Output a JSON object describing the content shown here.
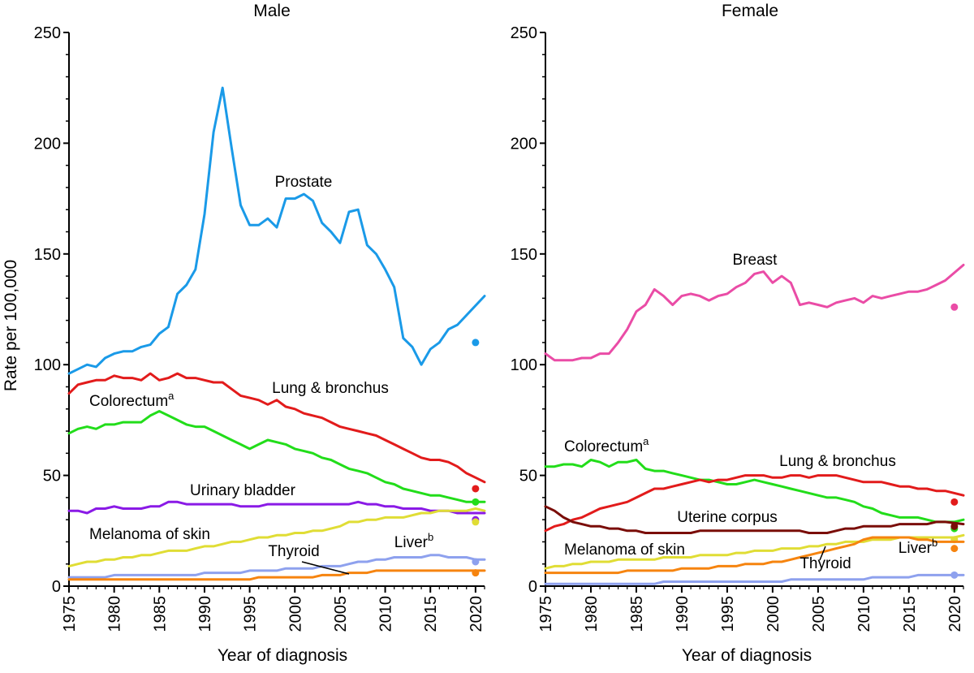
{
  "chart_data": [
    {
      "type": "line",
      "title": "Male",
      "xlabel": "Year of diagnosis",
      "ylabel": "Rate per 100,000",
      "xlim": [
        1975,
        2021
      ],
      "ylim": [
        0,
        250
      ],
      "xticks": [
        1975,
        1980,
        1985,
        1990,
        1995,
        2000,
        2005,
        2010,
        2015,
        2020
      ],
      "yticks": [
        0,
        50,
        100,
        150,
        200,
        250
      ],
      "x": [
        1975,
        1976,
        1977,
        1978,
        1979,
        1980,
        1981,
        1982,
        1983,
        1984,
        1985,
        1986,
        1987,
        1988,
        1989,
        1990,
        1991,
        1992,
        1993,
        1994,
        1995,
        1996,
        1997,
        1998,
        1999,
        2000,
        2001,
        2002,
        2003,
        2004,
        2005,
        2006,
        2007,
        2008,
        2009,
        2010,
        2011,
        2012,
        2013,
        2014,
        2015,
        2016,
        2017,
        2018,
        2019,
        2020,
        2021
      ],
      "series": [
        {
          "name": "Prostate",
          "label": "Prostate",
          "label_sup": "",
          "color": "#1a9ae8",
          "point_2020": 110,
          "values": [
            96,
            98,
            100,
            99,
            103,
            105,
            106,
            106,
            108,
            109,
            114,
            117,
            132,
            136,
            143,
            168,
            205,
            225,
            198,
            172,
            163,
            163,
            166,
            162,
            175,
            175,
            177,
            174,
            164,
            160,
            155,
            169,
            170,
            154,
            150,
            143,
            135,
            112,
            108,
            100,
            107,
            110,
            116,
            118,
            null,
            null,
            131
          ]
        },
        {
          "name": "Lung & bronchus",
          "label": "Lung & bronchus",
          "label_sup": "",
          "color": "#e21b1b",
          "point_2020": 44,
          "values": [
            87,
            91,
            92,
            93,
            93,
            95,
            94,
            94,
            93,
            96,
            93,
            94,
            96,
            94,
            94,
            93,
            92,
            92,
            89,
            86,
            85,
            84,
            82,
            84,
            81,
            80,
            78,
            77,
            76,
            74,
            72,
            71,
            70,
            69,
            68,
            66,
            64,
            62,
            60,
            58,
            57,
            57,
            56,
            54,
            51,
            49,
            47
          ]
        },
        {
          "name": "Colorectum",
          "label": "Colorectum",
          "label_sup": "a",
          "color": "#22dd1a",
          "point_2020": 38,
          "values": [
            69,
            71,
            72,
            71,
            73,
            73,
            74,
            74,
            74,
            77,
            79,
            77,
            75,
            73,
            72,
            72,
            70,
            68,
            66,
            64,
            62,
            64,
            66,
            65,
            64,
            62,
            61,
            60,
            58,
            57,
            55,
            53,
            52,
            51,
            49,
            47,
            46,
            44,
            43,
            42,
            41,
            41,
            40,
            39,
            38,
            38,
            38
          ]
        },
        {
          "name": "Urinary bladder",
          "label": "Urinary bladder",
          "label_sup": "",
          "color": "#8a1ae6",
          "point_2020": 30,
          "values": [
            34,
            34,
            33,
            35,
            35,
            36,
            35,
            35,
            35,
            36,
            36,
            38,
            38,
            37,
            37,
            37,
            37,
            37,
            37,
            36,
            36,
            36,
            37,
            37,
            37,
            37,
            37,
            37,
            37,
            37,
            37,
            37,
            38,
            37,
            37,
            36,
            36,
            35,
            35,
            35,
            34,
            34,
            34,
            33,
            33,
            33,
            33
          ]
        },
        {
          "name": "Melanoma of skin",
          "label": "Melanoma of skin",
          "label_sup": "",
          "color": "#e0dd35",
          "point_2020": 29,
          "values": [
            9,
            10,
            11,
            11,
            12,
            12,
            13,
            13,
            14,
            14,
            15,
            16,
            16,
            16,
            17,
            18,
            18,
            19,
            20,
            20,
            21,
            22,
            22,
            23,
            23,
            24,
            24,
            25,
            25,
            26,
            27,
            29,
            29,
            30,
            30,
            31,
            31,
            31,
            32,
            33,
            33,
            34,
            34,
            34,
            34,
            35,
            34
          ]
        },
        {
          "name": "Liver",
          "label": "Liver",
          "label_sup": "b",
          "color": "#8ea1ee",
          "point_2020": 11,
          "values": [
            4,
            4,
            4,
            4,
            4,
            5,
            5,
            5,
            5,
            5,
            5,
            5,
            5,
            5,
            5,
            6,
            6,
            6,
            6,
            6,
            7,
            7,
            7,
            7,
            8,
            8,
            8,
            8,
            9,
            9,
            9,
            10,
            11,
            11,
            12,
            12,
            13,
            13,
            13,
            13,
            14,
            14,
            13,
            13,
            13,
            12,
            12
          ]
        },
        {
          "name": "Thyroid",
          "label": "Thyroid",
          "label_sup": "",
          "color": "#f6840f",
          "point_2020": 6,
          "values": [
            3,
            3,
            3,
            3,
            3,
            3,
            3,
            3,
            3,
            3,
            3,
            3,
            3,
            3,
            3,
            3,
            3,
            3,
            3,
            3,
            3,
            4,
            4,
            4,
            4,
            4,
            4,
            4,
            5,
            5,
            5,
            6,
            6,
            6,
            7,
            7,
            7,
            7,
            7,
            7,
            7,
            7,
            7,
            7,
            7,
            7,
            7
          ]
        }
      ]
    },
    {
      "type": "line",
      "title": "Female",
      "xlabel": "Year of diagnosis",
      "ylabel": "",
      "xlim": [
        1975,
        2021
      ],
      "ylim": [
        0,
        250
      ],
      "xticks": [
        1975,
        1980,
        1985,
        1990,
        1995,
        2000,
        2005,
        2010,
        2015,
        2020
      ],
      "yticks": [
        0,
        50,
        100,
        150,
        200,
        250
      ],
      "x": [
        1975,
        1976,
        1977,
        1978,
        1979,
        1980,
        1981,
        1982,
        1983,
        1984,
        1985,
        1986,
        1987,
        1988,
        1989,
        1990,
        1991,
        1992,
        1993,
        1994,
        1995,
        1996,
        1997,
        1998,
        1999,
        2000,
        2001,
        2002,
        2003,
        2004,
        2005,
        2006,
        2007,
        2008,
        2009,
        2010,
        2011,
        2012,
        2013,
        2014,
        2015,
        2016,
        2017,
        2018,
        2019,
        2020,
        2021
      ],
      "series": [
        {
          "name": "Breast",
          "label": "Breast",
          "label_sup": "",
          "color": "#ea4ca6",
          "point_2020": 126,
          "values": [
            105,
            102,
            102,
            102,
            103,
            103,
            105,
            105,
            110,
            116,
            124,
            127,
            134,
            131,
            127,
            131,
            132,
            131,
            129,
            131,
            132,
            135,
            137,
            141,
            142,
            137,
            140,
            137,
            127,
            128,
            127,
            126,
            128,
            129,
            130,
            128,
            131,
            130,
            131,
            132,
            133,
            133,
            134,
            136,
            138,
            null,
            145
          ]
        },
        {
          "name": "Colorectum",
          "label": "Colorectum",
          "label_sup": "a",
          "color": "#22dd1a",
          "point_2020": 26,
          "values": [
            54,
            54,
            55,
            55,
            54,
            57,
            56,
            54,
            56,
            56,
            57,
            53,
            52,
            52,
            51,
            50,
            49,
            48,
            48,
            47,
            46,
            46,
            47,
            48,
            47,
            46,
            45,
            44,
            43,
            42,
            41,
            40,
            40,
            39,
            38,
            36,
            35,
            33,
            32,
            31,
            31,
            31,
            30,
            29,
            29,
            29,
            30
          ]
        },
        {
          "name": "Lung & bronchus",
          "label": "Lung & bronchus",
          "label_sup": "",
          "color": "#e21b1b",
          "point_2020": 38,
          "values": [
            25,
            27,
            28,
            30,
            31,
            33,
            35,
            36,
            37,
            38,
            40,
            42,
            44,
            44,
            45,
            46,
            47,
            48,
            47,
            48,
            48,
            49,
            50,
            50,
            50,
            49,
            49,
            50,
            50,
            49,
            50,
            50,
            50,
            49,
            48,
            47,
            47,
            47,
            46,
            45,
            45,
            44,
            44,
            43,
            43,
            42,
            41
          ]
        },
        {
          "name": "Uterine corpus",
          "label": "Uterine corpus",
          "label_sup": "",
          "color": "#7a0d08",
          "point_2020": 27,
          "values": [
            36,
            34,
            31,
            29,
            28,
            27,
            27,
            26,
            26,
            25,
            25,
            24,
            24,
            24,
            24,
            24,
            24,
            25,
            25,
            25,
            25,
            25,
            25,
            25,
            25,
            25,
            25,
            25,
            25,
            24,
            24,
            24,
            25,
            26,
            26,
            27,
            27,
            27,
            27,
            28,
            28,
            28,
            28,
            29,
            29,
            null,
            28
          ]
        },
        {
          "name": "Melanoma of skin",
          "label": "Melanoma of skin",
          "label_sup": "",
          "color": "#e0dd35",
          "point_2020": 21,
          "values": [
            8,
            9,
            9,
            10,
            10,
            11,
            11,
            11,
            12,
            12,
            12,
            12,
            12,
            13,
            13,
            13,
            13,
            14,
            14,
            14,
            14,
            15,
            15,
            16,
            16,
            16,
            17,
            17,
            17,
            18,
            18,
            19,
            19,
            20,
            20,
            20,
            21,
            21,
            21,
            22,
            22,
            22,
            22,
            22,
            22,
            22,
            23
          ]
        },
        {
          "name": "Thyroid",
          "label": "Thyroid",
          "label_sup": "",
          "color": "#f6840f",
          "point_2020": 17,
          "values": [
            6,
            6,
            6,
            6,
            6,
            6,
            6,
            6,
            6,
            7,
            7,
            7,
            7,
            7,
            7,
            8,
            8,
            8,
            8,
            9,
            9,
            9,
            10,
            10,
            10,
            11,
            11,
            12,
            13,
            14,
            15,
            16,
            17,
            18,
            19,
            21,
            22,
            22,
            22,
            22,
            22,
            21,
            21,
            20,
            20,
            20,
            20
          ]
        },
        {
          "name": "Liver",
          "label": "Liver",
          "label_sup": "b",
          "color": "#8ea1ee",
          "point_2020": 5,
          "values": [
            1,
            1,
            1,
            1,
            1,
            1,
            1,
            1,
            1,
            1,
            1,
            1,
            1,
            2,
            2,
            2,
            2,
            2,
            2,
            2,
            2,
            2,
            2,
            2,
            2,
            2,
            2,
            3,
            3,
            3,
            3,
            3,
            3,
            3,
            3,
            3,
            4,
            4,
            4,
            4,
            4,
            5,
            5,
            5,
            5,
            5,
            5
          ]
        }
      ]
    }
  ]
}
